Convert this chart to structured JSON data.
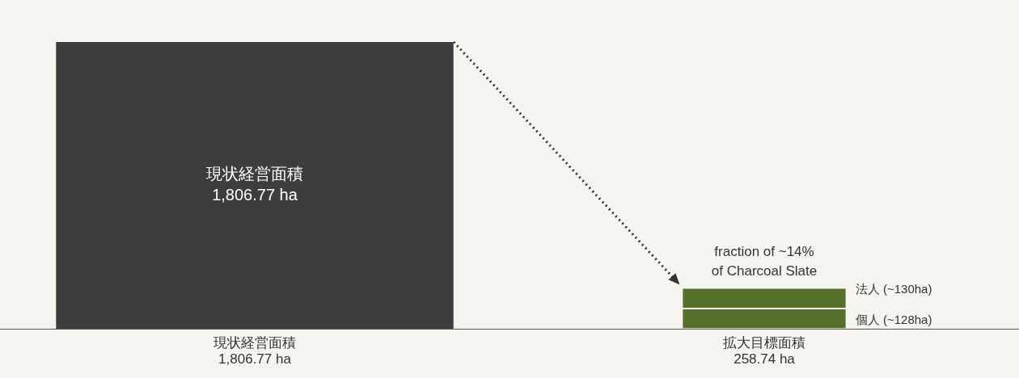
{
  "chart_data": {
    "type": "bar",
    "stacked": true,
    "categories": [
      "現状経営面積\n1,806.77 ha",
      "拡大目標面積\n258.74 ha"
    ],
    "series": [
      {
        "name": "現状経営面積",
        "color": "#3d3d3d",
        "values": [
          1806.77,
          null
        ],
        "value_labels": [
          "1,806.77 ha",
          null
        ]
      },
      {
        "name": "個人",
        "color": "#56702b",
        "values": [
          null,
          128
        ],
        "value_labels": [
          null,
          "(~128ha)"
        ]
      },
      {
        "name": "法人",
        "color": "#56702b",
        "values": [
          null,
          130
        ],
        "value_labels": [
          null,
          "(~130ha)"
        ]
      }
    ],
    "annotations": [
      "fraction of ~14%\nof Charcoal Slate"
    ],
    "tick_labels": "x",
    "grid": false,
    "legend": false
  }
}
